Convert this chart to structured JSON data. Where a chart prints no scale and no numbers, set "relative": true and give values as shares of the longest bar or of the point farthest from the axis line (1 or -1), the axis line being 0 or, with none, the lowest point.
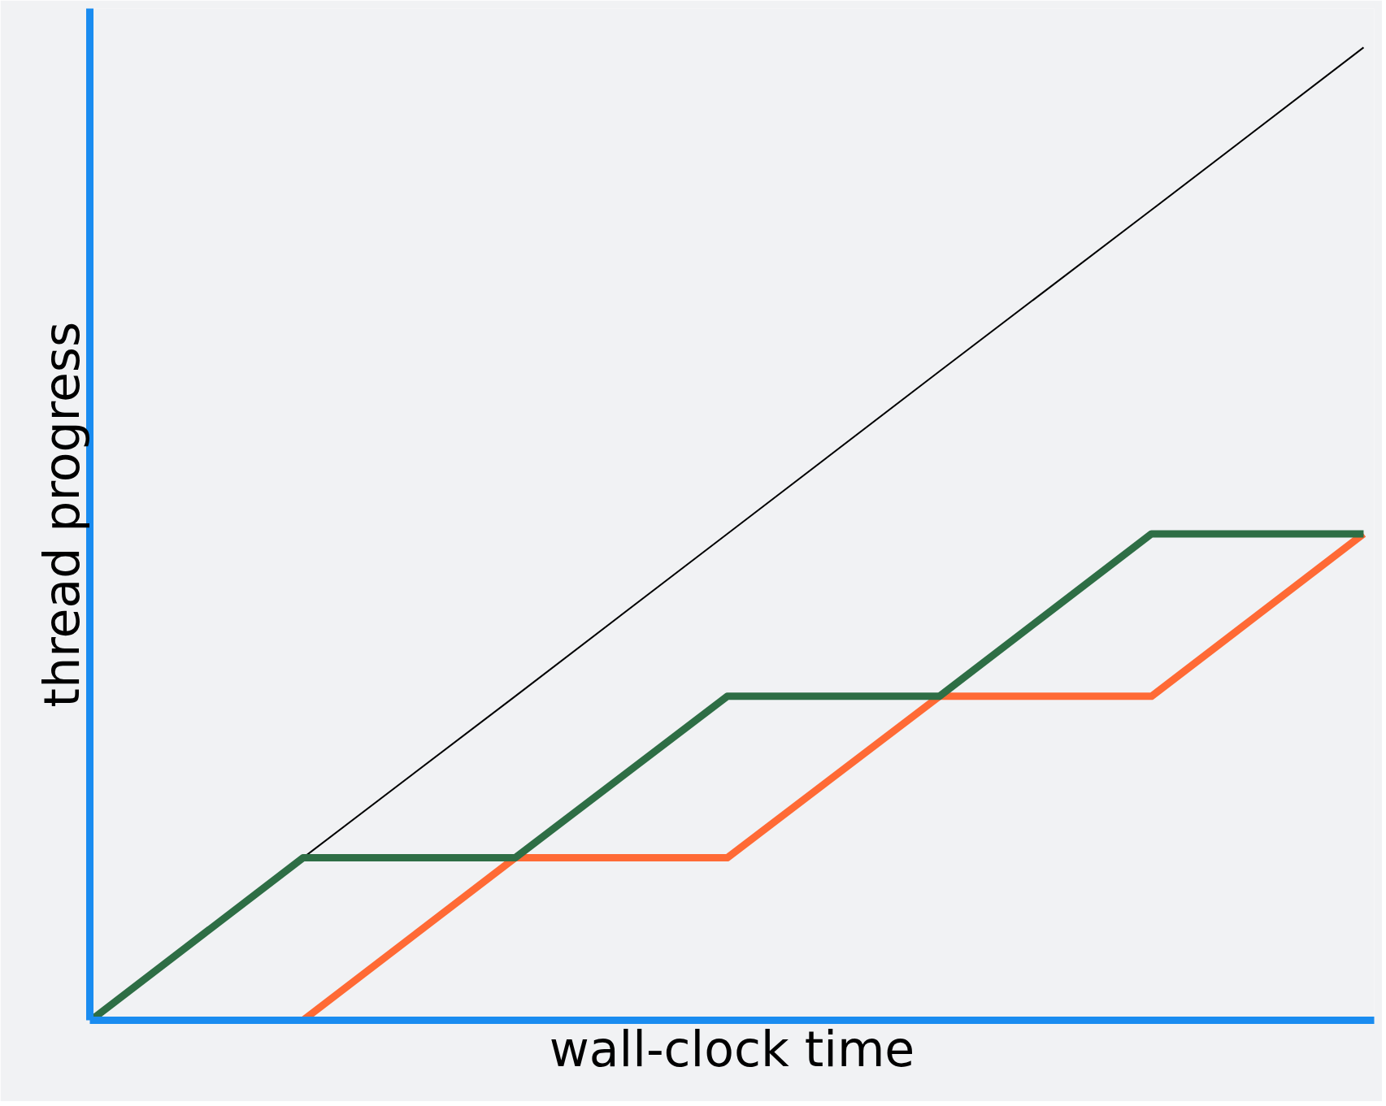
{
  "chart_data": {
    "type": "line",
    "relative": true,
    "xlabel": "wall-clock time",
    "ylabel": "thread progress",
    "categories": [
      null,
      null,
      null,
      null,
      null,
      null,
      null
    ],
    "series": [
      {
        "color": "#000000",
        "values": [
          0,
          0.167,
          0.333,
          0.5,
          0.667,
          0.833,
          1
        ]
      },
      {
        "color": "#ff6a35",
        "values": [
          0,
          0,
          0.167,
          0.167,
          0.333,
          0.333,
          0.5
        ]
      },
      {
        "color": "#2e6e45",
        "values": [
          0,
          0.167,
          0.167,
          0.333,
          0.333,
          0.5,
          0.5
        ]
      }
    ],
    "marker": "none",
    "line_style": "solid"
  }
}
